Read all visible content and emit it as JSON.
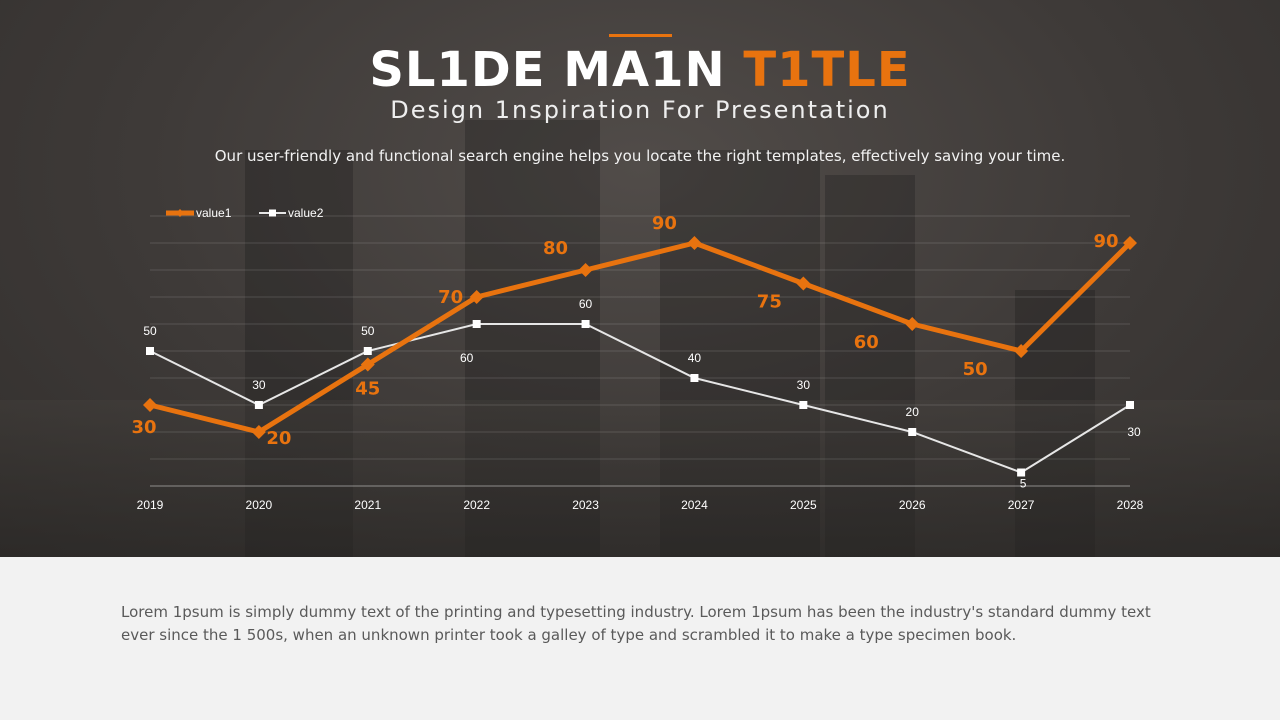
{
  "slide": {
    "title_main": "SL1DE MA1N ",
    "title_accent": "T1TLE",
    "subtitle": "Design 1nspiration For Presentation",
    "tagline": "Our user-friendly and functional search engine helps you locate the right templates, effectively saving your time.",
    "body_text": "Lorem 1psum is simply dummy text of the printing and typesetting industry. Lorem 1psum has been the industry's standard dummy text ever since the 1 500s, when an unknown printer took a galley of type and scrambled it to make a type specimen book."
  },
  "colors": {
    "accent": "#e8730f",
    "series2": "#e6e6e6",
    "background_dark": "#3e3a38",
    "background_light": "#f2f2f2"
  },
  "chart_data": {
    "type": "line",
    "categories": [
      "2019",
      "2020",
      "2021",
      "2022",
      "2023",
      "2024",
      "2025",
      "2026",
      "2027",
      "2028"
    ],
    "series": [
      {
        "name": "value1",
        "values": [
          30,
          20,
          45,
          70,
          80,
          90,
          75,
          60,
          50,
          90
        ],
        "color": "#e8730f",
        "marker": "diamond"
      },
      {
        "name": "value2",
        "values": [
          50,
          30,
          50,
          60,
          60,
          40,
          30,
          20,
          5,
          30
        ],
        "color": "#e6e6e6",
        "marker": "square"
      }
    ],
    "ylim": [
      0,
      100
    ],
    "grid": true,
    "legend": "top-left"
  }
}
